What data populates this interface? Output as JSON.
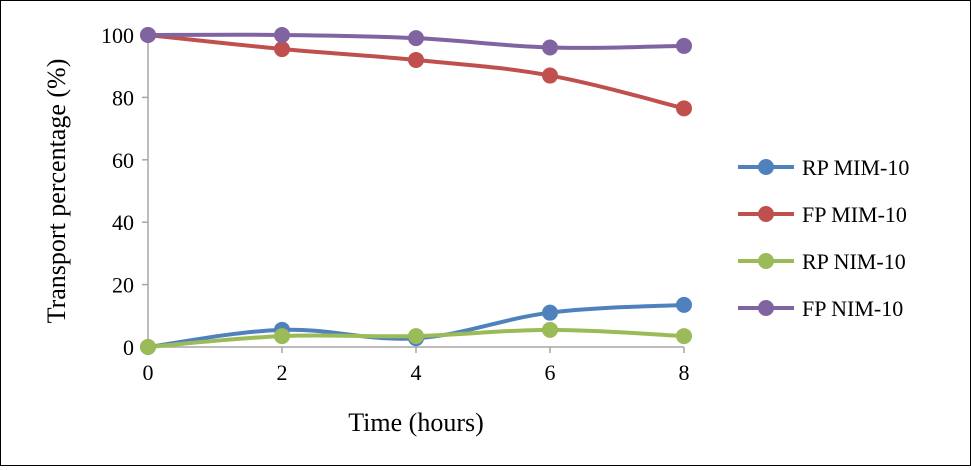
{
  "chart_data": {
    "type": "line",
    "title": "",
    "xlabel": "Time (hours)",
    "ylabel": "Transport percentage (%)",
    "x": [
      0,
      2,
      4,
      6,
      8
    ],
    "xticks": [
      "0",
      "2",
      "4",
      "6",
      "8"
    ],
    "yticks": [
      "0",
      "20",
      "40",
      "60",
      "80",
      "100"
    ],
    "xlim": [
      0,
      8
    ],
    "ylim": [
      0,
      100
    ],
    "grid": false,
    "legend_position": "right",
    "series": [
      {
        "name": "RP MIM-10",
        "color": "#4f81bd",
        "values": [
          0,
          5.5,
          2.8,
          11,
          13.5
        ]
      },
      {
        "name": "FP MIM-10",
        "color": "#c0504d",
        "values": [
          100,
          95.5,
          92,
          87,
          76.5
        ]
      },
      {
        "name": "RP NIM-10",
        "color": "#9bbb59",
        "values": [
          0,
          3.5,
          3.5,
          5.5,
          3.5
        ]
      },
      {
        "name": "FP NIM-10",
        "color": "#8064a2",
        "values": [
          100,
          100,
          99,
          96,
          96.5
        ]
      }
    ]
  }
}
